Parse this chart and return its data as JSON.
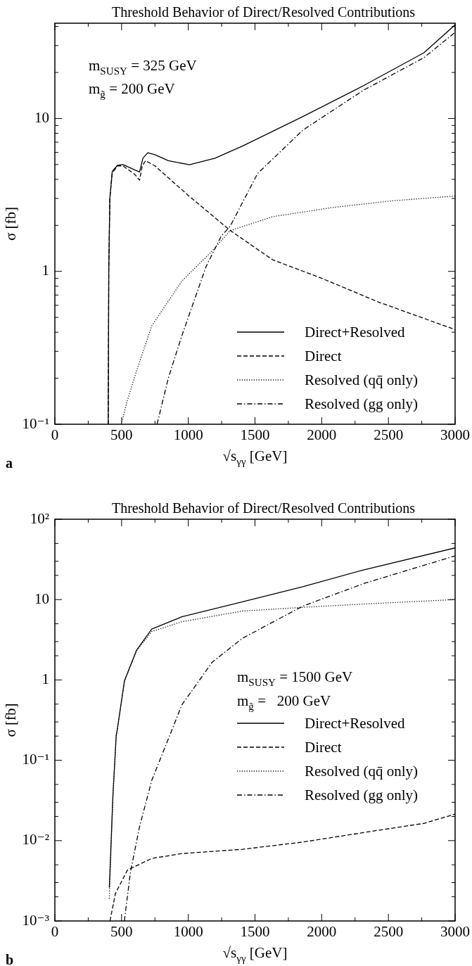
{
  "chart_data": [
    {
      "type": "line",
      "title": "Threshold Behavior of Direct/Resolved Contributions",
      "xlabel": "√s$_{γγ}$ [GeV]",
      "ylabel": "σ [fb]",
      "log": "y",
      "grid": false,
      "legend": "bottom right",
      "marker": "none",
      "xlim": [
        0,
        3000
      ],
      "xticks": [
        0,
        {
          "value": 250,
          "label": null
        },
        500,
        {
          "value": 750,
          "label": null
        },
        1000,
        {
          "value": 1250,
          "label": null
        },
        1500,
        {
          "value": 1750,
          "label": null
        },
        2000,
        {
          "value": 2250,
          "label": null
        },
        2500,
        {
          "value": 2750,
          "label": null
        },
        3000
      ],
      "ylim": [
        0.1,
        42
      ],
      "yticks": [
        {
          "value": 0.1,
          "label": "10⁻¹"
        },
        {
          "value": 0.2,
          "label": null
        },
        {
          "value": 0.3,
          "label": null
        },
        {
          "value": 0.4,
          "label": null
        },
        {
          "value": 0.5,
          "label": null
        },
        {
          "value": 0.6,
          "label": null
        },
        {
          "value": 0.7,
          "label": null
        },
        {
          "value": 0.8,
          "label": null
        },
        {
          "value": 0.9,
          "label": null
        },
        {
          "value": 1,
          "label": "1"
        },
        {
          "value": 2,
          "label": null
        },
        {
          "value": 3,
          "label": null
        },
        {
          "value": 4,
          "label": null
        },
        {
          "value": 5,
          "label": null
        },
        {
          "value": 6,
          "label": null
        },
        {
          "value": 7,
          "label": null
        },
        {
          "value": 8,
          "label": null
        },
        {
          "value": 9,
          "label": null
        },
        {
          "value": 10,
          "label": "10"
        },
        {
          "value": 20,
          "label": null
        },
        {
          "value": 30,
          "label": null
        },
        {
          "value": 40,
          "label": null
        }
      ],
      "annotations": [
        "m$_{SUSY}$ = 325 GeV",
        "m$_{g̃}$ = 200 GeV",
        "a"
      ],
      "series": [
        {
          "name": "Direct+Resolved",
          "color": "#000000",
          "line_style": "solid",
          "x": [
            400,
            404,
            412,
            430,
            470,
            510,
            600,
            635,
            660,
            696,
            750,
            850,
            1009,
            1200,
            1406,
            1859,
            2313,
            2766,
            3000
          ],
          "values": [
            0.1,
            1,
            3,
            4.5,
            4.95,
            5.0,
            4.6,
            4.47,
            5.5,
            5.97,
            5.8,
            5.3,
            4.98,
            5.5,
            6.6,
            10.3,
            16.4,
            26.9,
            41
          ]
        },
        {
          "name": "Direct",
          "color": "#000000",
          "line_style": "dashed",
          "x": [
            400,
            404,
            412,
            430,
            470,
            510,
            600,
            635,
            655,
            680,
            750,
            850,
            998,
            1315,
            1633,
            1995,
            2426,
            3000
          ],
          "values": [
            0.1,
            1,
            3,
            4.4,
            4.9,
            4.9,
            4.3,
            3.95,
            4.9,
            5.3,
            4.9,
            4.1,
            3.15,
            1.85,
            1.19,
            0.905,
            0.63,
            0.416
          ]
        },
        {
          "name": "Resolved (qq̄ only)",
          "color": "#000000",
          "line_style": "dotted",
          "x": [
            499,
            540,
            612,
            726,
            952,
            1179,
            1315,
            1633,
            2086,
            2540,
            3000
          ],
          "values": [
            0.1,
            0.14,
            0.223,
            0.44,
            0.865,
            1.36,
            1.85,
            2.28,
            2.62,
            2.9,
            3.11
          ]
        },
        {
          "name": "Resolved (gg only)",
          "color": "#000000",
          "line_style": "dashdot",
          "x": [
            766,
            850,
            952,
            1134,
            1247,
            1315,
            1519,
            1859,
            2313,
            2766,
            3000
          ],
          "values": [
            0.1,
            0.2,
            0.38,
            1.08,
            1.7,
            1.98,
            4.36,
            8.4,
            15.3,
            25,
            36.6
          ]
        }
      ]
    },
    {
      "type": "line",
      "title": "Threshold Behavior of Direct/Resolved Contributions",
      "xlabel": "√s$_{γγ}$ [GeV]",
      "ylabel": "σ [fb]",
      "log": "y",
      "grid": false,
      "legend": "right",
      "marker": "none",
      "xlim": [
        0,
        3000
      ],
      "xticks": [
        0,
        {
          "value": 250,
          "label": null
        },
        500,
        {
          "value": 750,
          "label": null
        },
        1000,
        {
          "value": 1250,
          "label": null
        },
        1500,
        {
          "value": 1750,
          "label": null
        },
        2000,
        {
          "value": 2250,
          "label": null
        },
        2500,
        {
          "value": 2750,
          "label": null
        },
        3000
      ],
      "ylim": [
        0.001,
        100
      ],
      "yticks": [
        {
          "value": 0.001,
          "label": "10⁻³"
        },
        {
          "value": 0.002,
          "label": null
        },
        {
          "value": 0.003,
          "label": null
        },
        {
          "value": 0.005,
          "label": null
        },
        {
          "value": 0.01,
          "label": "10⁻²"
        },
        {
          "value": 0.02,
          "label": null
        },
        {
          "value": 0.03,
          "label": null
        },
        {
          "value": 0.05,
          "label": null
        },
        {
          "value": 0.1,
          "label": "10⁻¹"
        },
        {
          "value": 0.2,
          "label": null
        },
        {
          "value": 0.3,
          "label": null
        },
        {
          "value": 0.5,
          "label": null
        },
        {
          "value": 1,
          "label": "1"
        },
        {
          "value": 2,
          "label": null
        },
        {
          "value": 3,
          "label": null
        },
        {
          "value": 5,
          "label": null
        },
        {
          "value": 10,
          "label": "10"
        },
        {
          "value": 20,
          "label": null
        },
        {
          "value": 30,
          "label": null
        },
        {
          "value": 50,
          "label": null
        },
        {
          "value": 100,
          "label": "10²"
        }
      ],
      "annotations": [
        "m$_{SUSY}$ = 1500 GeV",
        "m$_{g̃}$ =   200 GeV",
        "b"
      ],
      "series": [
        {
          "name": "Direct+Resolved",
          "color": "#000000",
          "line_style": "solid",
          "x": [
            408,
            435,
            460,
            465,
            522,
            612,
            726,
            952,
            1406,
            1859,
            2313,
            3000
          ],
          "values": [
            0.0026,
            0.036,
            0.206,
            0.224,
            0.98,
            2.34,
            4.3,
            6.1,
            9.4,
            14.5,
            23.4,
            44
          ]
        },
        {
          "name": "Direct",
          "color": "#000000",
          "line_style": "dashed",
          "x": [
            413,
            454,
            544,
            726,
            952,
            1406,
            1859,
            2313,
            2766,
            3000
          ],
          "values": [
            0.001,
            0.0022,
            0.0043,
            0.006,
            0.0069,
            0.0078,
            0.0096,
            0.0126,
            0.0164,
            0.0214
          ]
        },
        {
          "name": "Resolved (qq̄ only)",
          "color": "#000000",
          "line_style": "dotted",
          "x": [
            408,
            435,
            460,
            465,
            522,
            612,
            726,
            952,
            1406,
            1859,
            2313,
            3000
          ],
          "values": [
            0.0019,
            0.036,
            0.206,
            0.224,
            0.98,
            2.3,
            4.0,
            5.3,
            7.2,
            8.0,
            8.8,
            10
          ]
        },
        {
          "name": "Resolved (gg only)",
          "color": "#000000",
          "line_style": "dashdot",
          "x": [
            521,
            567,
            635,
            726,
            862,
            952,
            1179,
            1406,
            1859,
            2313,
            3000
          ],
          "values": [
            0.001,
            0.0041,
            0.015,
            0.056,
            0.206,
            0.49,
            1.66,
            3.3,
            8.3,
            15.8,
            35
          ]
        }
      ]
    }
  ]
}
